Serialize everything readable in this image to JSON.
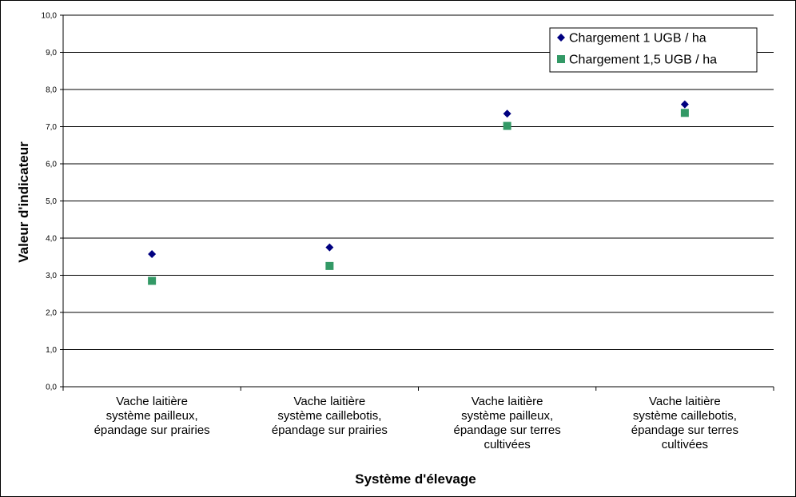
{
  "chart_data": {
    "type": "scatter",
    "title": "",
    "xlabel": "Système d'élevage",
    "ylabel": "Valeur d'indicateur",
    "ylim": [
      0,
      10
    ],
    "yticks": [
      "0,0",
      "1,0",
      "2,0",
      "3,0",
      "4,0",
      "5,0",
      "6,0",
      "7,0",
      "8,0",
      "9,0",
      "10,0"
    ],
    "grid": true,
    "legend_position": "top-right",
    "categories": [
      [
        "Vache laitière",
        "système pailleux,",
        "épandage sur prairies"
      ],
      [
        "Vache laitière",
        "système caillebotis,",
        "épandage sur prairies"
      ],
      [
        "Vache laitière",
        "système pailleux,",
        "épandage sur terres",
        "cultivées"
      ],
      [
        "Vache laitière",
        "système caillebotis,",
        "épandage sur terres",
        "cultivées"
      ]
    ],
    "series": [
      {
        "name": "Chargement 1 UGB / ha",
        "marker": "diamond",
        "color": "#000080",
        "values": [
          3.57,
          3.75,
          7.35,
          7.6
        ]
      },
      {
        "name": "Chargement 1,5 UGB / ha",
        "marker": "square",
        "color": "#339966",
        "values": [
          2.85,
          3.25,
          7.02,
          7.37
        ]
      }
    ]
  }
}
